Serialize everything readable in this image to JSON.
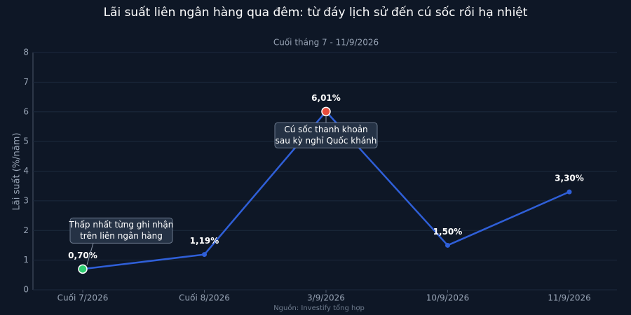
{
  "chart_data": {
    "type": "line",
    "title": "Lãi suất liên ngân hàng qua đêm: từ đáy lịch sử đến cú sốc rồi hạ nhiệt",
    "subtitle": "Cuối tháng 7 - 11/9/2026",
    "y_label": "Lãi suất (%/năm)",
    "source": "Nguồn: Investify tổng hợp",
    "categories": [
      "Cuối 7/2026",
      "Cuối 8/2026",
      "3/9/2026",
      "10/9/2026",
      "11/9/2026"
    ],
    "values": [
      0.7,
      1.19,
      6.01,
      1.5,
      3.3
    ],
    "value_labels": [
      "0,70%",
      "1,19%",
      "6,01%",
      "1,50%",
      "3,30%"
    ],
    "color": "#2f5fd8",
    "ylim": [
      0,
      8
    ],
    "yticks": [
      0,
      1,
      2,
      3,
      4,
      5,
      6,
      7,
      8
    ],
    "grid": true,
    "annotations": [
      {
        "index": 0,
        "marker_color": "#2ecc71",
        "lines": [
          "Thấp nhất từng ghi nhận",
          "trên liên ngân hàng"
        ]
      },
      {
        "index": 2,
        "marker_color": "#e74c3c",
        "lines": [
          "Cú sốc thanh khoản",
          "sau kỳ nghỉ Quốc khánh"
        ]
      }
    ]
  }
}
